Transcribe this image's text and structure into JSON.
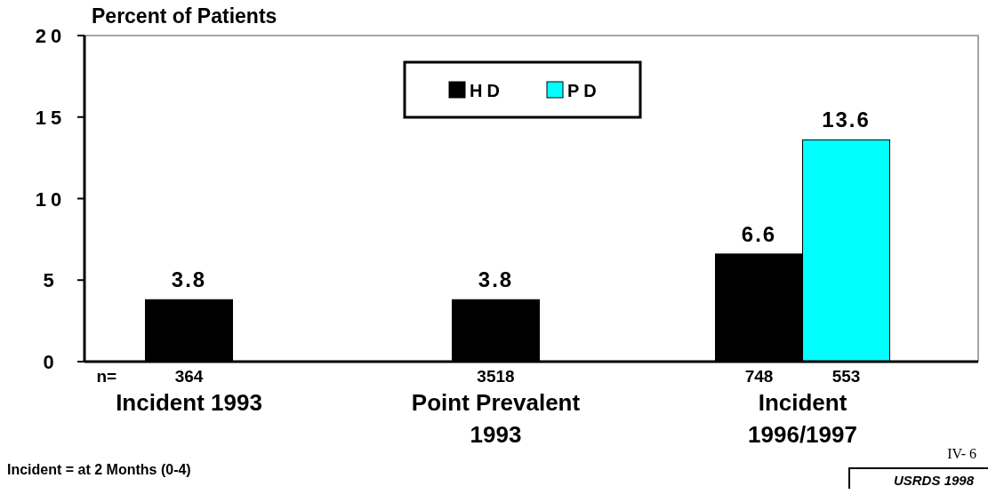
{
  "chart_data": {
    "type": "bar",
    "ylabel": "Percent of Patients",
    "categories": [
      "Incident 1993",
      "Point Prevalent 1993",
      "Incident 1996/1997"
    ],
    "series": [
      {
        "name": "HD",
        "color": "#000000",
        "values": [
          3.8,
          3.8,
          6.6
        ]
      },
      {
        "name": "PD",
        "color": "#00ffff",
        "values": [
          null,
          null,
          13.6
        ]
      }
    ],
    "ylim": [
      0,
      20
    ],
    "yticks": [
      0,
      5,
      10,
      15,
      20
    ],
    "data_labels": true,
    "legend": "top",
    "grid": false,
    "annotations": [
      "n=",
      "364",
      "3518",
      "748",
      "553",
      "Incident = at 2 Months (0-4)",
      "IV- 6",
      "USRDS 1998"
    ]
  }
}
